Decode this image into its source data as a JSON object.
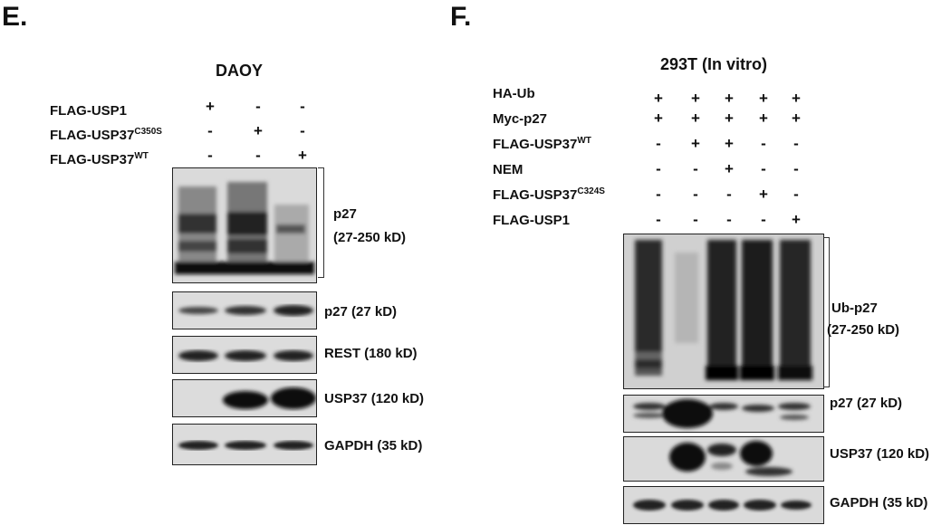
{
  "panel_e": {
    "letter": "E.",
    "title": "DAOY",
    "conditions": [
      {
        "label": "FLAG-USP1",
        "sup": "",
        "signs": [
          "+",
          "-",
          "-"
        ]
      },
      {
        "label": "FLAG-USP37",
        "sup": "C350S",
        "signs": [
          "-",
          "+",
          "-"
        ]
      },
      {
        "label": "FLAG-USP37",
        "sup": "WT",
        "signs": [
          "-",
          "-",
          "+"
        ]
      }
    ],
    "blots": [
      {
        "label_line1": "p27",
        "label_line2": "(27-250 kD)"
      },
      {
        "label": "p27 (27 kD)"
      },
      {
        "label": "REST (180 kD)"
      },
      {
        "label": "USP37 (120 kD)"
      },
      {
        "label": "GAPDH (35 kD)"
      }
    ]
  },
  "panel_f": {
    "letter": "F.",
    "title": "293T (In vitro)",
    "conditions": [
      {
        "label": "HA-Ub",
        "sup": "",
        "signs": [
          "+",
          "+",
          "+",
          "+",
          "+"
        ]
      },
      {
        "label": "Myc-p27",
        "sup": "",
        "signs": [
          "+",
          "+",
          "+",
          "+",
          "+"
        ]
      },
      {
        "label": "FLAG-USP37",
        "sup": "WT",
        "signs": [
          "-",
          "+",
          "+",
          "-",
          "-"
        ]
      },
      {
        "label": "NEM",
        "sup": "",
        "signs": [
          "-",
          "-",
          "+",
          "-",
          "-"
        ]
      },
      {
        "label": "FLAG-USP37",
        "sup": "C324S",
        "signs": [
          "-",
          "-",
          "-",
          "+",
          "-"
        ]
      },
      {
        "label": "FLAG-USP1",
        "sup": "",
        "signs": [
          "-",
          "-",
          "-",
          "-",
          "+"
        ]
      }
    ],
    "blots": [
      {
        "label_line1": "Ub-p27",
        "label_line2": "(27-250 kD)"
      },
      {
        "label": "p27 (27 kD)"
      },
      {
        "label": "USP37 (120 kD)"
      },
      {
        "label": "GAPDH (35 kD)"
      }
    ]
  }
}
